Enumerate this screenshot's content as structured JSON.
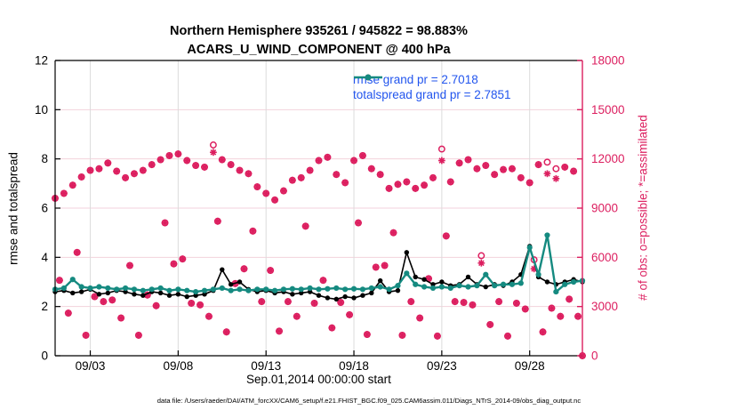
{
  "figure": {
    "title_line1": "Northern Hemisphere 935261 / 945822 = 98.883%",
    "title_line2": "ACARS_U_WIND_COMPONENT @ 400 hPa",
    "footer": "data file: /Users/raeder/DAI/ATM_forcXX/CAM6_setup/f.e21.FHIST_BGC.f09_025.CAM6assim.011/Diags_NTrS_2014-09/obs_diag_output.nc"
  },
  "colors": {
    "rmse_line": "#000000",
    "totalspread_line": "#158a80",
    "obs_markers": "#dc1e5f",
    "right_axis": "#dc1e5f",
    "legend_text": "#2255ee",
    "grid_horizontal": "#f3d2dc",
    "grid_vertical": "#dcdcdc",
    "axis": "#000000"
  },
  "chart_data": {
    "type": "line",
    "title": "Northern Hemisphere 935261 / 945822 = 98.883%",
    "subtitle": "ACARS_U_WIND_COMPONENT @ 400 hPa",
    "possible_total": 945822,
    "assimilated_total": 935261,
    "assimilated_percent": 98.883,
    "x_axis": {
      "label": "Sep.01,2014 00:00:00 start",
      "start": "Sep 1, 2014 00:00:00",
      "range_days": [
        0,
        30
      ],
      "tick_days": [
        2,
        7,
        12,
        17,
        22,
        27
      ],
      "tick_labels": [
        "09/03",
        "09/08",
        "09/13",
        "09/18",
        "09/23",
        "09/28"
      ],
      "grid": true
    },
    "left_axis": {
      "label": "rmse and totalspread",
      "range": [
        0,
        12
      ],
      "ticks": [
        0,
        2,
        4,
        6,
        8,
        10,
        12
      ],
      "grid": true
    },
    "right_axis": {
      "label": "# of obs: o=possible; *=assimilated",
      "range": [
        0,
        18000
      ],
      "ticks": [
        0,
        3000,
        6000,
        9000,
        12000,
        15000,
        18000
      ]
    },
    "legend": [
      {
        "label": "rmse grand pr = 2.7018",
        "series": "rmse",
        "grand_pr": 2.7018
      },
      {
        "label": "totalspread grand pr = 2.7851",
        "series": "totalspread",
        "grand_pr": 2.7851
      }
    ],
    "line_time_step_days": 0.5,
    "line_time_start_day": 0,
    "rmse": [
      2.6,
      2.65,
      2.55,
      2.6,
      2.7,
      2.5,
      2.55,
      2.65,
      2.6,
      2.5,
      2.45,
      2.6,
      2.55,
      2.45,
      2.5,
      2.4,
      2.45,
      2.5,
      2.65,
      3.5,
      2.9,
      3.0,
      2.7,
      2.6,
      2.65,
      2.55,
      2.6,
      2.5,
      2.55,
      2.6,
      2.45,
      2.35,
      2.3,
      2.4,
      2.35,
      2.45,
      2.55,
      3.05,
      2.6,
      2.65,
      4.2,
      3.2,
      3.1,
      2.9,
      3.0,
      2.85,
      2.9,
      3.2,
      2.9,
      2.8,
      2.9,
      2.85,
      3.0,
      3.3,
      4.45,
      3.2,
      3.0,
      2.9,
      3.0,
      3.1,
      3.0
    ],
    "totalspread": [
      2.7,
      2.75,
      3.1,
      2.8,
      2.75,
      2.8,
      2.75,
      2.7,
      2.75,
      2.7,
      2.65,
      2.7,
      2.75,
      2.65,
      2.7,
      2.65,
      2.6,
      2.65,
      2.7,
      2.75,
      2.65,
      2.7,
      2.65,
      2.7,
      2.7,
      2.65,
      2.7,
      2.72,
      2.7,
      2.75,
      2.7,
      2.72,
      2.75,
      2.7,
      2.72,
      2.7,
      2.75,
      2.8,
      2.7,
      2.85,
      3.35,
      2.9,
      2.8,
      2.75,
      2.8,
      2.75,
      2.85,
      2.8,
      2.85,
      3.3,
      2.85,
      2.9,
      2.9,
      2.95,
      4.4,
      3.3,
      4.9,
      2.6,
      2.9,
      3.0,
      3.05
    ],
    "obs_time_step_days": 0.25,
    "obs_time_start_day": 0,
    "obs_possible": [
      9600,
      4600,
      9900,
      2600,
      10400,
      6300,
      10900,
      1250,
      11300,
      3600,
      11400,
      3300,
      11750,
      3400,
      11250,
      2300,
      10850,
      5500,
      11100,
      1250,
      11300,
      3700,
      11650,
      3050,
      11950,
      8100,
      12200,
      5600,
      12300,
      5900,
      11900,
      3200,
      11600,
      3100,
      11500,
      2400,
      12850,
      8200,
      11950,
      1450,
      11650,
      4400,
      11300,
      5300,
      11100,
      7600,
      10300,
      3300,
      9900,
      5200,
      9500,
      1500,
      10050,
      3300,
      10700,
      2400,
      10850,
      7900,
      11300,
      3200,
      11900,
      4600,
      12100,
      1700,
      11050,
      3250,
      10550,
      2500,
      11900,
      8100,
      12200,
      1300,
      11400,
      5400,
      11050,
      5500,
      10200,
      7500,
      10450,
      1250,
      10600,
      3300,
      10200,
      2300,
      10400,
      4700,
      10850,
      1200,
      12600,
      7300,
      10600,
      3300,
      11750,
      3250,
      11950,
      3100,
      11400,
      6100,
      11600,
      1900,
      11050,
      3300,
      11350,
      1200,
      11400,
      3200,
      10850,
      2850,
      10550,
      5850,
      11650,
      1450,
      11800,
      2900,
      11400,
      2400,
      11500,
      3450,
      11250,
      2400,
      0
    ],
    "obs_assimilated": [
      9600,
      4600,
      9900,
      2600,
      10400,
      6300,
      10900,
      1250,
      11300,
      3600,
      11400,
      3300,
      11750,
      3400,
      11250,
      2300,
      10850,
      5500,
      11100,
      1250,
      11300,
      3700,
      11650,
      3050,
      11950,
      8100,
      12200,
      5600,
      12300,
      5900,
      11900,
      3200,
      11600,
      3100,
      11500,
      2400,
      12400,
      8200,
      11950,
      1450,
      11650,
      4400,
      11300,
      5300,
      11100,
      7600,
      10300,
      3300,
      9900,
      5200,
      9500,
      1500,
      10050,
      3300,
      10700,
      2400,
      10850,
      7900,
      11300,
      3200,
      11900,
      4600,
      12100,
      1700,
      11050,
      3250,
      10550,
      2500,
      11900,
      8100,
      12200,
      1300,
      11400,
      5400,
      11050,
      5500,
      10200,
      7500,
      10450,
      1250,
      10600,
      3300,
      10200,
      2300,
      10400,
      4700,
      10850,
      1200,
      11900,
      7300,
      10600,
      3300,
      11750,
      3250,
      11950,
      3100,
      11400,
      5650,
      11600,
      1900,
      11050,
      3300,
      11350,
      1200,
      11400,
      3200,
      10850,
      2850,
      10550,
      5300,
      11650,
      1450,
      11100,
      2900,
      10800,
      2400,
      11500,
      3450,
      11250,
      2400,
      0
    ]
  }
}
